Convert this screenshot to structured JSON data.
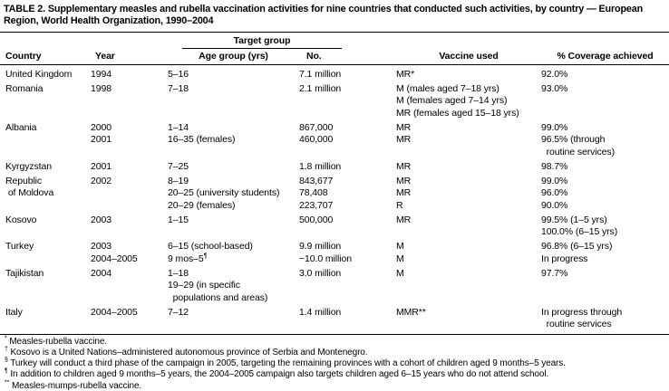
{
  "title": "TABLE 2. Supplementary measles and rubella vaccination activities for nine countries that conducted such activities, by country — European Region, World Health Organization, 1990–2004",
  "columns": {
    "target_group": "Target group",
    "country": "Country",
    "year": "Year",
    "age_group": "Age group (yrs)",
    "number": "No.",
    "vaccine": "Vaccine used",
    "coverage": "% Coverage achieved"
  },
  "rows": [
    {
      "country": [
        "United Kingdom"
      ],
      "year": [
        "1994"
      ],
      "age": [
        "5–16"
      ],
      "no": [
        "7.1 million"
      ],
      "vaccine": [
        "MR*"
      ],
      "coverage": [
        "92.0%"
      ],
      "gap": false
    },
    {
      "country": [
        "Romania"
      ],
      "year": [
        "1998"
      ],
      "age": [
        "7–18"
      ],
      "no": [
        "2.1 million"
      ],
      "vaccine": [
        "M (males aged 7–18 yrs)",
        "M (females aged 7–14 yrs)",
        "MR (females aged 15–18 yrs)"
      ],
      "coverage": [
        "93.0%"
      ],
      "gap": true
    },
    {
      "country": [
        "Albania"
      ],
      "year": [
        "2000"
      ],
      "age": [
        "1–14"
      ],
      "no": [
        "867,000"
      ],
      "vaccine": [
        "MR"
      ],
      "coverage": [
        "99.0%"
      ],
      "gap": true
    },
    {
      "country": [],
      "year": [
        "2001"
      ],
      "age": [
        "16–35 (females)"
      ],
      "no": [
        "460,000"
      ],
      "vaccine": [
        "MR"
      ],
      "coverage": [
        "96.5% (through",
        "  routine services)"
      ],
      "gap": false
    },
    {
      "country": [
        "Kyrgyzstan"
      ],
      "year": [
        "2001"
      ],
      "age": [
        "7–25"
      ],
      "no": [
        "1.8 million"
      ],
      "vaccine": [
        "MR"
      ],
      "coverage": [
        "98.7%"
      ],
      "gap": true
    },
    {
      "country": [
        "Republic",
        " of Moldova"
      ],
      "year": [
        "2002"
      ],
      "age": [
        "8–19",
        "20–25 (university students)",
        "20–29 (females)"
      ],
      "no": [
        "843,677",
        "78,408",
        "223,707"
      ],
      "vaccine": [
        "MR",
        "MR",
        "R"
      ],
      "coverage": [
        "99.0%",
        "96.0%",
        "90.0%"
      ],
      "gap": true
    },
    {
      "country": [
        "Kosovo"
      ],
      "country_sup": "†",
      "year": [
        "2003"
      ],
      "age": [
        "1–15"
      ],
      "no": [
        "500,000"
      ],
      "vaccine": [
        "MR"
      ],
      "coverage": [
        "99.5% (1–5 yrs)",
        "100.0% (6–15 yrs)"
      ],
      "gap": true
    },
    {
      "country": [
        "Turkey"
      ],
      "country_sup": "§",
      "year": [
        "2003",
        "2004–2005"
      ],
      "age": [
        "6–15 (school-based)",
        {
          "text": "9 mos–5",
          "sup": "¶"
        }
      ],
      "no": [
        "9.9 million",
        "~10.0 million"
      ],
      "vaccine": [
        "M",
        "M"
      ],
      "coverage": [
        "96.8% (6–15 yrs)",
        "In progress"
      ],
      "gap": true
    },
    {
      "country": [
        "Tajikistan"
      ],
      "year": [
        "2004"
      ],
      "age": [
        "1–18",
        "19–29 (in specific",
        "  populations and areas)"
      ],
      "no": [
        "3.0 million"
      ],
      "vaccine": [
        "M"
      ],
      "coverage": [
        "97.7%"
      ],
      "gap": true
    },
    {
      "country": [
        "Italy"
      ],
      "year": [
        "2004–2005"
      ],
      "age": [
        "7–12"
      ],
      "no": [
        "1.4 million"
      ],
      "vaccine": [
        "MMR**"
      ],
      "coverage": [
        "In progress through",
        "  routine services"
      ],
      "gap": true
    }
  ],
  "footnotes": [
    {
      "marker": "*",
      "text": "Measles-rubella vaccine."
    },
    {
      "marker": "†",
      "text": "Kosovo is a United Nations–administered autonomous province of Serbia and Montenegro."
    },
    {
      "marker": "§",
      "text": "Turkey will conduct a third phase of the campaign in 2005, targeting the remaining provinces with a cohort of children aged 9 months–5 years."
    },
    {
      "marker": "¶",
      "text": "In addition to children aged 9 months–5 years, the 2004–2005 campaign also targets children aged 6–15 years who do not attend school."
    },
    {
      "marker": "**",
      "text": "Measles-mumps-rubella vaccine."
    }
  ],
  "colors": {
    "text": "#000000",
    "background": "#ffffff",
    "rule": "#000000"
  }
}
